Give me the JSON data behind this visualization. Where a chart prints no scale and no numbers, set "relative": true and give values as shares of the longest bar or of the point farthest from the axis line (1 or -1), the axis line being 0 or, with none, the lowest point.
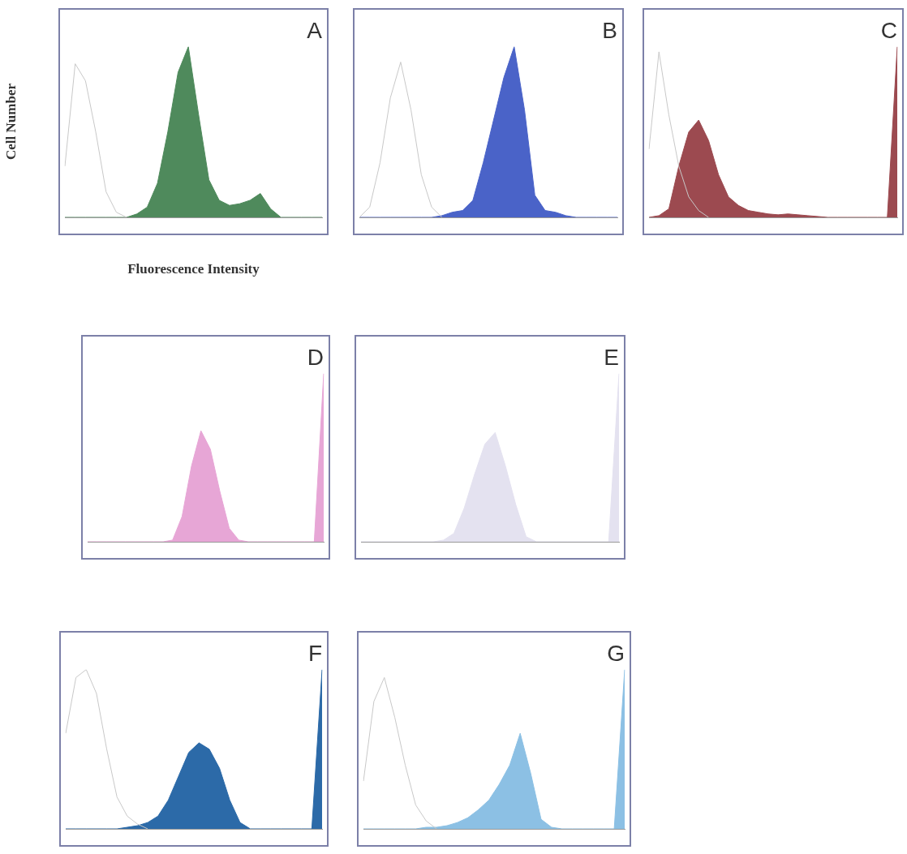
{
  "chart_data": [
    {
      "type": "area",
      "title": "A",
      "ylabel": "Cell Number",
      "xlabel": "Fluorescence Intensity",
      "relative": true,
      "tick_labels": false,
      "categories": [
        null,
        null,
        null,
        null,
        null,
        null,
        null,
        null,
        null,
        null,
        null,
        null,
        null,
        null,
        null,
        null,
        null,
        null,
        null,
        null,
        null,
        null,
        null,
        null,
        null,
        null
      ],
      "series": [
        {
          "color": "#4f8a5c",
          "values": [
            0,
            0,
            0,
            0,
            0,
            0,
            0,
            0.02,
            0.06,
            0.2,
            0.5,
            0.85,
            1,
            0.6,
            0.22,
            0.1,
            0.07,
            0.08,
            0.1,
            0.14,
            0.05,
            0,
            0,
            0,
            0,
            0
          ]
        },
        {
          "type": "line",
          "color": "#c8c8c8",
          "values": [
            0.3,
            0.9,
            0.8,
            0.5,
            0.15,
            0.03,
            0,
            null,
            null,
            null,
            null,
            null,
            null,
            null,
            null,
            null,
            null,
            null,
            null,
            null,
            null,
            null,
            null,
            null,
            null,
            null
          ]
        }
      ]
    },
    {
      "type": "area",
      "title": "B",
      "relative": true,
      "tick_labels": false,
      "categories": [
        null,
        null,
        null,
        null,
        null,
        null,
        null,
        null,
        null,
        null,
        null,
        null,
        null,
        null,
        null,
        null,
        null,
        null,
        null,
        null,
        null,
        null,
        null,
        null,
        null,
        null
      ],
      "series": [
        {
          "color": "#4a63c8",
          "values": [
            0,
            0,
            0,
            0,
            0,
            0,
            0,
            0,
            0.01,
            0.03,
            0.04,
            0.1,
            0.32,
            0.57,
            0.82,
            1,
            0.63,
            0.13,
            0.04,
            0.03,
            0.01,
            0,
            0,
            0,
            0,
            0
          ]
        },
        {
          "type": "line",
          "color": "#c8c8c8",
          "values": [
            0,
            0.06,
            0.32,
            0.7,
            0.91,
            0.63,
            0.25,
            0.06,
            0,
            null,
            null,
            null,
            null,
            null,
            null,
            null,
            null,
            null,
            null,
            null,
            null,
            null,
            null,
            null,
            null,
            null
          ]
        }
      ]
    },
    {
      "type": "area",
      "title": "C",
      "relative": true,
      "tick_labels": false,
      "categories": [
        null,
        null,
        null,
        null,
        null,
        null,
        null,
        null,
        null,
        null,
        null,
        null,
        null,
        null,
        null,
        null,
        null,
        null,
        null,
        null,
        null,
        null,
        null,
        null,
        null,
        null
      ],
      "series": [
        {
          "color": "#9c4a50",
          "values": [
            0,
            0.01,
            0.05,
            0.3,
            0.5,
            0.57,
            0.45,
            0.25,
            0.12,
            0.07,
            0.04,
            0.03,
            0.02,
            0.015,
            0.02,
            0.015,
            0.01,
            0.005,
            0,
            0,
            0,
            0,
            0,
            0,
            0,
            1
          ]
        },
        {
          "type": "line",
          "color": "#c8c8c8",
          "values": [
            0.4,
            0.97,
            0.6,
            0.3,
            0.12,
            0.04,
            0,
            null,
            null,
            null,
            null,
            null,
            null,
            null,
            null,
            null,
            null,
            null,
            null,
            null,
            null,
            null,
            null,
            null,
            null,
            null
          ]
        }
      ]
    },
    {
      "type": "area",
      "title": "D",
      "relative": true,
      "tick_labels": false,
      "categories": [
        null,
        null,
        null,
        null,
        null,
        null,
        null,
        null,
        null,
        null,
        null,
        null,
        null,
        null,
        null,
        null,
        null,
        null,
        null,
        null,
        null,
        null,
        null,
        null,
        null,
        null
      ],
      "series": [
        {
          "color": "#e7a6d6",
          "values": [
            0,
            0,
            0,
            0,
            0,
            0,
            0,
            0,
            0,
            0.01,
            0.15,
            0.45,
            0.66,
            0.55,
            0.3,
            0.08,
            0.01,
            0,
            0,
            0,
            0,
            0,
            0,
            0,
            0,
            1
          ]
        }
      ]
    },
    {
      "type": "area",
      "title": "E",
      "relative": true,
      "tick_labels": false,
      "categories": [
        null,
        null,
        null,
        null,
        null,
        null,
        null,
        null,
        null,
        null,
        null,
        null,
        null,
        null,
        null,
        null,
        null,
        null,
        null,
        null,
        null,
        null,
        null,
        null,
        null,
        null
      ],
      "series": [
        {
          "color": "#e4e2f0",
          "values": [
            0,
            0,
            0,
            0,
            0,
            0,
            0,
            0,
            0.01,
            0.05,
            0.2,
            0.4,
            0.58,
            0.65,
            0.45,
            0.22,
            0.03,
            0,
            0,
            0,
            0,
            0,
            0,
            0,
            0,
            1
          ]
        }
      ]
    },
    {
      "type": "area",
      "title": "F",
      "relative": true,
      "tick_labels": false,
      "categories": [
        null,
        null,
        null,
        null,
        null,
        null,
        null,
        null,
        null,
        null,
        null,
        null,
        null,
        null,
        null,
        null,
        null,
        null,
        null,
        null,
        null,
        null,
        null,
        null,
        null,
        null
      ],
      "series": [
        {
          "color": "#2c6aa8",
          "values": [
            0,
            0,
            0,
            0,
            0,
            0,
            0.01,
            0.02,
            0.04,
            0.08,
            0.18,
            0.33,
            0.48,
            0.54,
            0.5,
            0.38,
            0.18,
            0.04,
            0,
            0,
            0,
            0,
            0,
            0,
            0,
            1
          ]
        },
        {
          "type": "line",
          "color": "#c8c8c8",
          "values": [
            0.6,
            0.95,
            1,
            0.85,
            0.5,
            0.2,
            0.08,
            0.03,
            0,
            null,
            null,
            null,
            null,
            null,
            null,
            null,
            null,
            null,
            null,
            null,
            null,
            null,
            null,
            null,
            null,
            null
          ]
        }
      ]
    },
    {
      "type": "area",
      "title": "G",
      "relative": true,
      "tick_labels": false,
      "categories": [
        null,
        null,
        null,
        null,
        null,
        null,
        null,
        null,
        null,
        null,
        null,
        null,
        null,
        null,
        null,
        null,
        null,
        null,
        null,
        null,
        null,
        null,
        null,
        null,
        null,
        null
      ],
      "series": [
        {
          "color": "#8cc0e4",
          "values": [
            0,
            0,
            0,
            0,
            0,
            0,
            0.01,
            0.01,
            0.02,
            0.04,
            0.07,
            0.12,
            0.18,
            0.28,
            0.4,
            0.6,
            0.35,
            0.06,
            0.01,
            0,
            0,
            0,
            0,
            0,
            0,
            1
          ]
        },
        {
          "type": "line",
          "color": "#c8c8c8",
          "values": [
            0.3,
            0.8,
            0.95,
            0.7,
            0.4,
            0.15,
            0.05,
            0,
            null,
            null,
            null,
            null,
            null,
            null,
            null,
            null,
            null,
            null,
            null,
            null,
            null,
            null,
            null,
            null,
            null,
            null
          ]
        }
      ]
    }
  ]
}
